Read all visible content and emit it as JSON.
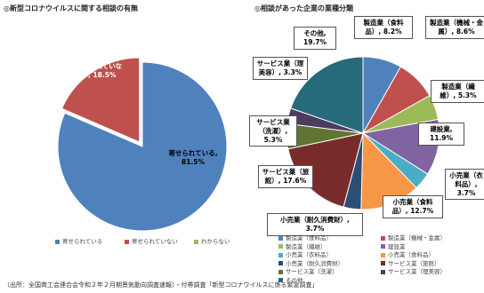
{
  "chart_data": [
    {
      "type": "pie",
      "title": "◎新型コロナウイルスに関する相談の有無",
      "categories": [
        "寄せられている",
        "寄せられていない",
        "わからない"
      ],
      "values": [
        81.5,
        18.5,
        0
      ],
      "value_labels": [
        "寄せられている, 81.5%",
        "寄せられていない, 18.5%",
        null
      ],
      "colors": [
        "#4f81bd",
        "#c0504d",
        "#9bbb59"
      ]
    },
    {
      "type": "pie",
      "title": "◎相談があった企業の業種分類",
      "categories": [
        "製造業（食料品）",
        "製造業（機械・金属）",
        "製造業（繊維）",
        "建設業",
        "小売業（衣料品）",
        "小売業（食料品）",
        "小売業（耐久消費財）",
        "サービス業（旅館）",
        "サービス業（洗濯）",
        "サービス業（理美容）",
        "その他"
      ],
      "values": [
        8.2,
        8.6,
        5.3,
        11.9,
        3.7,
        12.7,
        3.7,
        17.6,
        5.3,
        3.3,
        19.7
      ],
      "value_labels": [
        "製造業（食料品）, 8.2%",
        "製造業（機械・金属）, 8.6%",
        "製造業（繊維）, 5.3%",
        "建設業, 11.9%",
        "小売業（衣料品）, 3.7%",
        "小売業（食料品）, 12.7%",
        "小売業（耐久消費財）, 3.7%",
        "サービス業（旅館）, 17.6%",
        "サービス業（洗濯）, 5.3%",
        "サービス業（理美容）, 3.3%",
        "その他, 19.7%"
      ],
      "colors": [
        "#4f81bd",
        "#c0504d",
        "#9bbb59",
        "#8064a2",
        "#4bacc6",
        "#f79646",
        "#2c4d75",
        "#772c2a",
        "#5f7530",
        "#4d3b62",
        "#276a7c"
      ]
    }
  ],
  "footnote": "（出所：全国商工会連合会令和２年２月期景気動向調査速報）・付帯調査「新型コロナウイルスに係る緊急調査」"
}
